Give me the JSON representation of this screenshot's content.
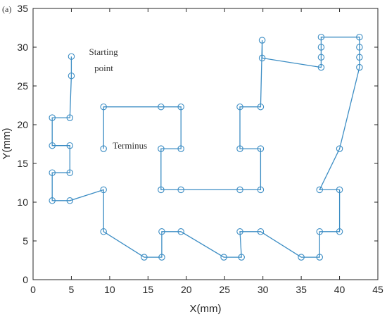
{
  "chart_data": {
    "type": "line",
    "panel_label": "(a)",
    "xlabel": "X(mm)",
    "ylabel": "Y(mm)",
    "xlim": [
      0,
      45
    ],
    "ylim": [
      0,
      35
    ],
    "xticks": [
      0,
      5,
      10,
      15,
      20,
      25,
      30,
      35,
      40,
      45
    ],
    "yticks": [
      0,
      5,
      10,
      15,
      20,
      25,
      30,
      35
    ],
    "grid": false,
    "legend": "none",
    "annotations": [
      {
        "text": "Starting",
        "x": 7.3,
        "y": 29.0
      },
      {
        "text": "point",
        "x": 8.0,
        "y": 26.9
      },
      {
        "text": "Terminus",
        "x": 10.4,
        "y": 16.9
      }
    ],
    "series": [
      {
        "color": "#3C8DC4",
        "marker": "open-circle",
        "points": [
          [
            5.0,
            28.8
          ],
          [
            5.0,
            26.3
          ],
          [
            4.8,
            20.9
          ],
          [
            2.5,
            20.9
          ],
          [
            2.5,
            17.3
          ],
          [
            4.8,
            17.3
          ],
          [
            4.8,
            13.8
          ],
          [
            2.5,
            13.8
          ],
          [
            2.5,
            10.2
          ],
          [
            4.8,
            10.2
          ],
          [
            9.2,
            11.6
          ],
          [
            9.2,
            6.2
          ],
          [
            14.5,
            2.9
          ],
          [
            16.8,
            2.9
          ],
          [
            16.8,
            6.2
          ],
          [
            19.3,
            6.2
          ],
          [
            24.9,
            2.9
          ],
          [
            27.2,
            2.9
          ],
          [
            27.0,
            6.2
          ],
          [
            29.7,
            6.2
          ],
          [
            35.0,
            2.9
          ],
          [
            37.4,
            2.9
          ],
          [
            37.4,
            6.2
          ],
          [
            40.0,
            6.2
          ],
          [
            40.0,
            11.6
          ],
          [
            37.4,
            11.6
          ],
          [
            40.0,
            16.9
          ],
          [
            42.6,
            27.4
          ],
          [
            42.6,
            28.7
          ],
          [
            42.6,
            30.0
          ],
          [
            42.6,
            31.3
          ],
          [
            37.6,
            31.3
          ],
          [
            37.6,
            30.0
          ],
          [
            37.6,
            28.7
          ],
          [
            37.6,
            27.4
          ],
          [
            29.9,
            28.6
          ],
          [
            29.9,
            30.9
          ],
          [
            29.7,
            22.3
          ],
          [
            27.0,
            22.3
          ],
          [
            27.0,
            16.9
          ],
          [
            29.7,
            16.9
          ],
          [
            29.7,
            11.6
          ],
          [
            27.0,
            11.6
          ],
          [
            19.3,
            11.6
          ],
          [
            16.7,
            11.6
          ],
          [
            16.7,
            16.9
          ],
          [
            19.3,
            16.9
          ],
          [
            19.3,
            22.3
          ],
          [
            16.7,
            22.3
          ],
          [
            9.2,
            22.3
          ],
          [
            9.2,
            16.9
          ]
        ]
      }
    ]
  }
}
